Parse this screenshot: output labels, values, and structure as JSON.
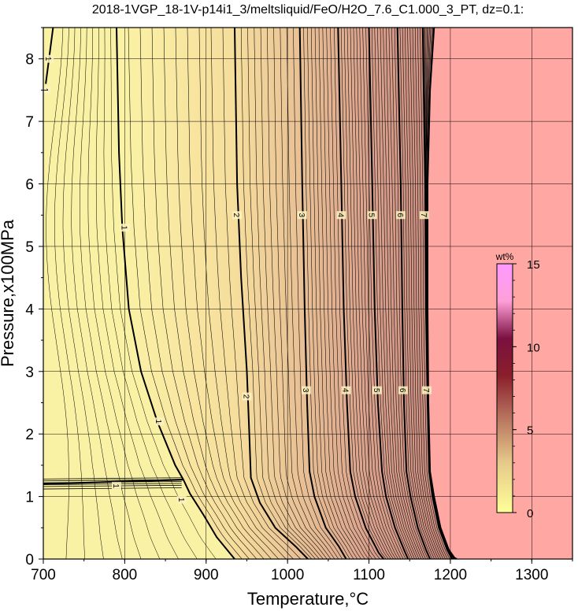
{
  "chart_data": {
    "type": "heatmap",
    "title": "2018-1VGP_18-1V-p14i1_3/meltsliquid/FeO/H2O_7.6_C1.000_3_PT, dz=0.1:",
    "xlabel": "Temperature,°C",
    "ylabel": "Pressure,x100MPa",
    "xlim": [
      700,
      1350
    ],
    "ylim": [
      0,
      8.5
    ],
    "x_ticks": [
      "700",
      "800",
      "900",
      "1000",
      "1100",
      "1200",
      "1300"
    ],
    "y_ticks": [
      "0",
      "1",
      "2",
      "3",
      "4",
      "5",
      "6",
      "7",
      "8"
    ],
    "grid": true,
    "colorbar": {
      "label": "wt%",
      "min": 0,
      "max": 15,
      "ticks": [
        "0",
        "5",
        "10",
        "15"
      ],
      "placement": "right",
      "colors": [
        "#ffff99",
        "#ff99ff"
      ]
    },
    "region_colors": {
      "solid": "#f9f2a4",
      "fully_molten": "#ffa8a3"
    },
    "major_contours": [
      {
        "label": "1",
        "points": [
          [
            790,
            8.5
          ],
          [
            793,
            6.5
          ],
          [
            797,
            5.3
          ],
          [
            805,
            4.0
          ],
          [
            820,
            3.0
          ],
          [
            840,
            2.2
          ],
          [
            862,
            1.5
          ],
          [
            872,
            1.27
          ],
          [
            880,
            1.05
          ],
          [
            897,
            0.7
          ],
          [
            913,
            0.35
          ],
          [
            935,
            0
          ]
        ]
      },
      {
        "label": "2",
        "points": [
          [
            935,
            8.5
          ],
          [
            938,
            6.0
          ],
          [
            943,
            4.5
          ],
          [
            950,
            3.0
          ],
          [
            953,
            2.0
          ],
          [
            955,
            1.3
          ],
          [
            966,
            0.9
          ],
          [
            985,
            0.5
          ],
          [
            1010,
            0.2
          ],
          [
            1025,
            0
          ]
        ]
      },
      {
        "label": "3",
        "points": [
          [
            1015,
            8.5
          ],
          [
            1018,
            6.0
          ],
          [
            1021,
            4.0
          ],
          [
            1024,
            2.5
          ],
          [
            1027,
            1.4
          ],
          [
            1033,
            1.0
          ],
          [
            1047,
            0.5
          ],
          [
            1063,
            0.2
          ],
          [
            1072,
            0
          ]
        ]
      },
      {
        "label": "4",
        "points": [
          [
            1062,
            8.5
          ],
          [
            1066,
            6.0
          ],
          [
            1069,
            4.0
          ],
          [
            1073,
            2.5
          ],
          [
            1077,
            1.4
          ],
          [
            1083,
            1.0
          ],
          [
            1096,
            0.5
          ],
          [
            1112,
            0.1
          ],
          [
            1118,
            0
          ]
        ]
      },
      {
        "label": "5",
        "points": [
          [
            1100,
            8.5
          ],
          [
            1104,
            6.0
          ],
          [
            1107,
            4.0
          ],
          [
            1111,
            2.5
          ],
          [
            1116,
            1.4
          ],
          [
            1121,
            1.0
          ],
          [
            1132,
            0.5
          ],
          [
            1143,
            0.15
          ],
          [
            1148,
            0
          ]
        ]
      },
      {
        "label": "6",
        "points": [
          [
            1135,
            8.5
          ],
          [
            1139,
            6.0
          ],
          [
            1141,
            4.0
          ],
          [
            1143,
            2.5
          ],
          [
            1146,
            1.4
          ],
          [
            1151,
            1.0
          ],
          [
            1160,
            0.5
          ],
          [
            1170,
            0.15
          ],
          [
            1175,
            0
          ]
        ]
      },
      {
        "label": "7",
        "points": [
          [
            1166,
            8.5
          ],
          [
            1169,
            6.0
          ],
          [
            1170,
            4.0
          ],
          [
            1172,
            2.5
          ],
          [
            1174,
            1.4
          ],
          [
            1178,
            1.0
          ],
          [
            1186,
            0.5
          ],
          [
            1196,
            0.15
          ],
          [
            1202,
            0
          ]
        ]
      }
    ],
    "liquidus": {
      "points": [
        [
          1180,
          8.5
        ],
        [
          1175,
          7.5
        ],
        [
          1172,
          6.0
        ],
        [
          1172,
          4.0
        ],
        [
          1173,
          2.5
        ],
        [
          1175,
          1.4
        ],
        [
          1180,
          1.0
        ],
        [
          1188,
          0.5
        ],
        [
          1198,
          0.15
        ],
        [
          1205,
          0.02
        ],
        [
          1208,
          0
        ]
      ]
    },
    "contour_label_positions": [
      {
        "label": "1",
        "x": 800,
        "y": 5.3
      },
      {
        "label": "1",
        "x": 842,
        "y": 2.2
      },
      {
        "label": "1",
        "x": 870,
        "y": 0.95
      },
      {
        "label": "1",
        "x": 790,
        "y": 1.17
      },
      {
        "label": "1",
        "x": 707,
        "y": 8.0
      },
      {
        "label": "1",
        "x": 703,
        "y": 7.5
      },
      {
        "label": "2",
        "x": 938,
        "y": 5.5
      },
      {
        "label": "2",
        "x": 950,
        "y": 2.6
      },
      {
        "label": "3",
        "x": 1018,
        "y": 5.5
      },
      {
        "label": "3",
        "x": 1023,
        "y": 2.7
      },
      {
        "label": "4",
        "x": 1066,
        "y": 5.5
      },
      {
        "label": "4",
        "x": 1072,
        "y": 2.7
      },
      {
        "label": "5",
        "x": 1104,
        "y": 5.5
      },
      {
        "label": "5",
        "x": 1110,
        "y": 2.7
      },
      {
        "label": "6",
        "x": 1139,
        "y": 5.5
      },
      {
        "label": "6",
        "x": 1142,
        "y": 2.7
      },
      {
        "label": "7",
        "x": 1168,
        "y": 5.5
      },
      {
        "label": "7",
        "x": 1171,
        "y": 2.7
      }
    ]
  }
}
